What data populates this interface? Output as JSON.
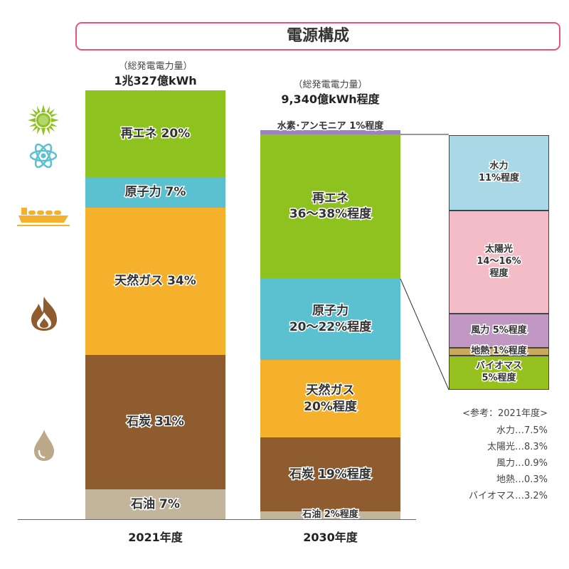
{
  "chart_data": {
    "type": "bar",
    "stacked": true,
    "title": "電源構成",
    "categories": [
      "2021年度",
      "2030年度"
    ],
    "bars": [
      {
        "category": "2021年度",
        "total_caption": "（総発電電力量）",
        "total": "1兆327億kWh",
        "segments": [
          {
            "name": "再エネ",
            "value": 20,
            "label": "再エネ 20%",
            "color": "#8dc21f"
          },
          {
            "name": "原子力",
            "value": 7,
            "label": "原子力 7%",
            "color": "#5bc0cf"
          },
          {
            "name": "天然ガス",
            "value": 34,
            "label": "天然ガス 34%",
            "color": "#f5b12b"
          },
          {
            "name": "石炭",
            "value": 31,
            "label": "石炭 31%",
            "color": "#8f5c30"
          },
          {
            "name": "石油",
            "value": 7,
            "label": "石油 7%",
            "color": "#c2b59b"
          }
        ]
      },
      {
        "category": "2030年度",
        "total_caption": "（総発電電力量）",
        "total": "9,340億kWh程度",
        "segments": [
          {
            "name": "水素・アンモニア",
            "value": 1,
            "label": "水素･アンモニア 1%程度",
            "color": "#9b82c1"
          },
          {
            "name": "再エネ",
            "value": [
              36,
              38
            ],
            "label": "再エネ\n36〜38%程度",
            "color": "#8dc21f"
          },
          {
            "name": "原子力",
            "value": [
              20,
              22
            ],
            "label": "原子力\n20〜22%程度",
            "color": "#5bc0cf"
          },
          {
            "name": "天然ガス",
            "value": 20,
            "label": "天然ガス\n20%程度",
            "color": "#f5b12b"
          },
          {
            "name": "石炭",
            "value": 19,
            "label": "石炭 19%程度",
            "color": "#8f5c30"
          },
          {
            "name": "石油",
            "value": 2,
            "label": "石油 2%程度",
            "color": "#c2b59b"
          }
        ]
      }
    ],
    "breakdown": {
      "of": "再エネ 2030年度",
      "segments": [
        {
          "name": "水力",
          "value": 11,
          "label": "水力\n11%程度",
          "color": "#a9d9e6"
        },
        {
          "name": "太陽光",
          "value": [
            14,
            16
          ],
          "label": "太陽光\n14〜16%\n程度",
          "color": "#f4bcc6"
        },
        {
          "name": "風力",
          "value": 5,
          "label": "風力 5%程度",
          "color": "#c197c4"
        },
        {
          "name": "地熱",
          "value": 1,
          "label": "地熱 1%程度",
          "color": "#c9a860"
        },
        {
          "name": "バイオマス",
          "value": 5,
          "label": "バイオマス\n5%程度",
          "color": "#96c11f"
        }
      ]
    },
    "reference": {
      "title": "<参考：2021年度>",
      "items": [
        "水力…7.5%",
        "太陽光…8.3%",
        "風力…0.9%",
        "地熱…0.3%",
        "バイオマス…3.2%"
      ]
    }
  },
  "icons": [
    "sun-icon",
    "atom-icon",
    "lng-ship-icon",
    "flame-icon",
    "oil-drop-icon"
  ],
  "accent_color": "#e4557f"
}
